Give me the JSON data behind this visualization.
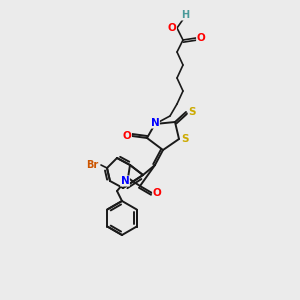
{
  "bg_color": "#ebebeb",
  "bond_color": "#1a1a1a",
  "atom_colors": {
    "N": "#0000ff",
    "O": "#ff0000",
    "S": "#ccaa00",
    "Br": "#cc5500",
    "H": "#4a9a9a",
    "C": "#1a1a1a"
  },
  "figsize": [
    3.0,
    3.0
  ],
  "dpi": 100
}
